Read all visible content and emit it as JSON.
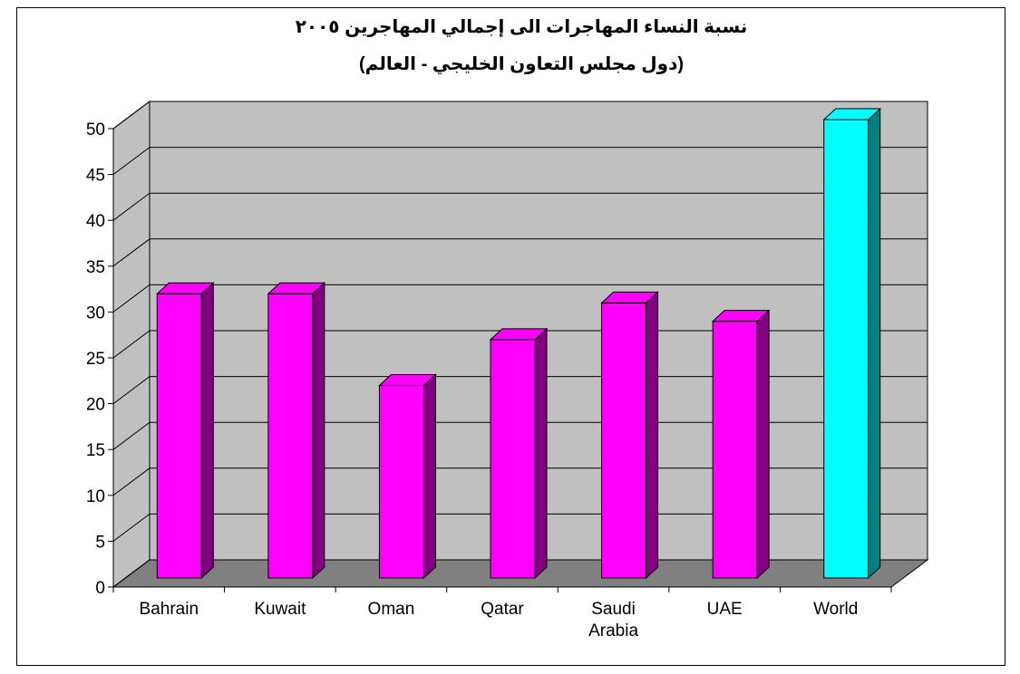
{
  "chart_data": {
    "type": "bar3d",
    "title": "نسبة النساء المهاجرات الى إجمالي المهاجرين ٢٠٠٥",
    "subtitle": "(دول مجلس التعاون الخليجي - العالم)",
    "categories": [
      "Bahrain",
      "Kuwait",
      "Oman",
      "Qatar",
      "Saudi Arabia",
      "UAE",
      "World"
    ],
    "values": [
      31,
      31,
      21,
      26,
      30,
      28,
      50
    ],
    "colors": [
      "#ff00ff",
      "#ff00ff",
      "#ff00ff",
      "#ff00ff",
      "#ff00ff",
      "#ff00ff",
      "#00ffff"
    ],
    "side_colors": [
      "#800080",
      "#800080",
      "#800080",
      "#800080",
      "#800080",
      "#800080",
      "#008080"
    ],
    "ylim": [
      0,
      50
    ],
    "yticks": [
      0,
      5,
      10,
      15,
      20,
      25,
      30,
      35,
      40,
      45,
      50
    ],
    "grid": true
  }
}
